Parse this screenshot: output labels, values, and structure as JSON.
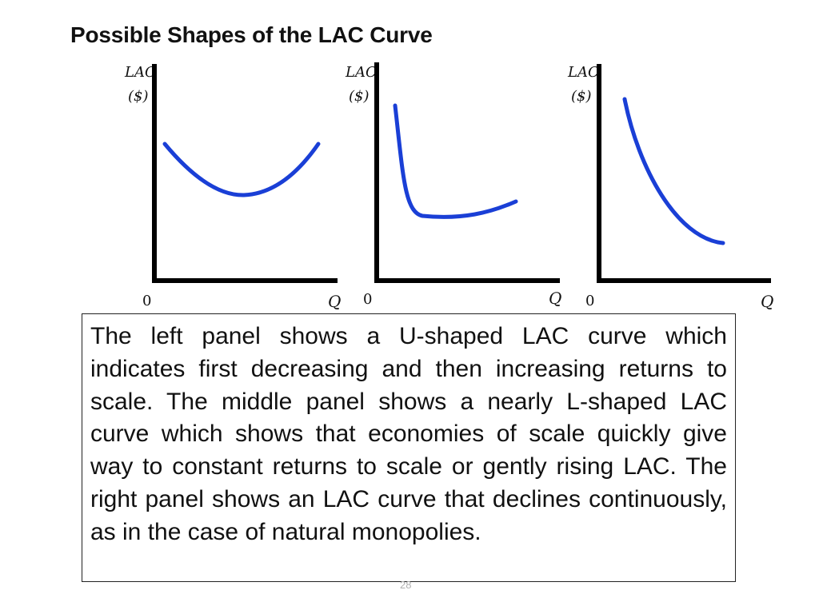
{
  "title": "Possible Shapes of the LAC Curve",
  "diagram": {
    "colors": {
      "curve": "#1a3fd6",
      "axis": "#000000"
    },
    "panels": [
      {
        "id": "left",
        "y_label_1": "LAC",
        "y_label_2": "($)",
        "x_label": "Q",
        "origin_label": "0",
        "shape": "U-shaped"
      },
      {
        "id": "middle",
        "y_label_1": "LAC",
        "y_label_2": "($)",
        "x_label": "Q",
        "origin_label": "0",
        "shape": "nearly L-shaped"
      },
      {
        "id": "right",
        "y_label_1": "LAC",
        "y_label_2": "($)",
        "x_label": "Q",
        "origin_label": "0",
        "shape": "continuously declining"
      }
    ]
  },
  "description": "The left panel shows a U-shaped LAC curve which indicates first decreasing and then increasing returns to scale. The middle panel shows a nearly L-shaped LAC curve which shows that economies of scale quickly give way to constant returns to scale or gently rising LAC. The right panel shows an LAC curve that declines continuously, as in the case of natural monopolies.",
  "page_number": "28"
}
